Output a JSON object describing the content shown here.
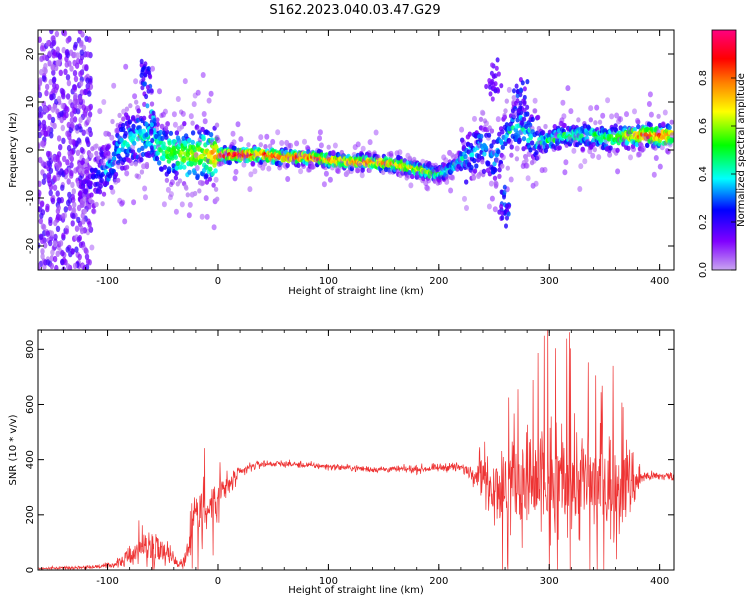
{
  "figure_title": "S162.2023.040.03.47.G29",
  "chart_data": [
    {
      "type": "heatmap",
      "xlabel": "Height of straight line (km)",
      "ylabel": "Frequency (Hz)",
      "xlim": [
        -163,
        413
      ],
      "ylim": [
        -25,
        25
      ],
      "xticks": [
        -100,
        0,
        100,
        200,
        300,
        400
      ],
      "yticks": [
        -20,
        -10,
        0,
        10,
        20
      ],
      "colorbar": {
        "label": "Normalized spectral amplitude",
        "range": [
          0,
          1
        ],
        "ticks": [
          0.0,
          0.2,
          0.4,
          0.6,
          0.8
        ],
        "colormap": [
          "#c9a6f0",
          "#8000ff",
          "#0000ff",
          "#00ffff",
          "#00ff00",
          "#ffff00",
          "#ff8000",
          "#ff0000",
          "#ff0080"
        ]
      },
      "ridge": {
        "x": [
          -120,
          -100,
          -90,
          -80,
          -70,
          -60,
          -50,
          -40,
          -30,
          -20,
          -10,
          0,
          20,
          40,
          60,
          80,
          100,
          120,
          140,
          160,
          180,
          200,
          210,
          220,
          230,
          240,
          250,
          260,
          270,
          280,
          290,
          300,
          310,
          320,
          330,
          340,
          350,
          360,
          370,
          380,
          390,
          400,
          410
        ],
        "y": [
          -8,
          -4,
          0,
          2,
          3,
          3,
          0,
          -0.5,
          -1,
          -1,
          -1,
          -1,
          -1,
          -1,
          -1.5,
          -1.5,
          -2,
          -2.5,
          -2.5,
          -3,
          -4,
          -5,
          -4,
          -2,
          -1,
          1,
          -2,
          3,
          5,
          4,
          2,
          2,
          3,
          3,
          3,
          3,
          2.5,
          2.5,
          3,
          3,
          3,
          3,
          3
        ],
        "amplitude": [
          0.15,
          0.3,
          0.4,
          0.4,
          0.45,
          0.45,
          0.5,
          0.55,
          0.6,
          0.65,
          0.7,
          0.85,
          0.95,
          0.9,
          0.85,
          0.85,
          0.8,
          0.8,
          0.8,
          0.75,
          0.7,
          0.5,
          0.45,
          0.4,
          0.35,
          0.35,
          0.35,
          0.35,
          0.4,
          0.4,
          0.4,
          0.45,
          0.45,
          0.45,
          0.5,
          0.5,
          0.5,
          0.6,
          0.65,
          0.8,
          0.85,
          0.85,
          0.8
        ]
      },
      "features": [
        {
          "x": -65,
          "y": 15,
          "amplitude": 0.3
        },
        {
          "x": -60,
          "y": 5,
          "amplitude": 0.4
        },
        {
          "x": 250,
          "y": 14,
          "amplitude": 0.2
        },
        {
          "x": 260,
          "y": -12,
          "amplitude": 0.3
        },
        {
          "x": 275,
          "y": 10,
          "amplitude": 0.3
        }
      ]
    },
    {
      "type": "line",
      "xlabel": "Height of straight line (km)",
      "ylabel": "SNR (10 * v/v)",
      "xlim": [
        -163,
        413
      ],
      "ylim": [
        0,
        870
      ],
      "xticks": [
        -100,
        0,
        100,
        200,
        300,
        400
      ],
      "yticks": [
        0,
        200,
        400,
        600,
        800
      ],
      "color": "#ee3333",
      "series": [
        {
          "x": [
            -163,
            -140,
            -120,
            -100,
            -90,
            -80,
            -70,
            -60,
            -50,
            -40,
            -35,
            -30,
            -25,
            -20,
            -15,
            -10,
            -5,
            0,
            5,
            10,
            15,
            20,
            30,
            40,
            50,
            60,
            80,
            100,
            120,
            140,
            160,
            180,
            200,
            210,
            220,
            230,
            240,
            250,
            260,
            270,
            280,
            290,
            300,
            310,
            320,
            330,
            340,
            350,
            360,
            370,
            380,
            385,
            390,
            400,
            413
          ],
          "y": [
            5,
            8,
            10,
            15,
            25,
            50,
            75,
            90,
            80,
            40,
            20,
            40,
            110,
            220,
            240,
            220,
            240,
            260,
            290,
            310,
            330,
            350,
            375,
            385,
            385,
            385,
            380,
            375,
            370,
            365,
            365,
            365,
            370,
            375,
            370,
            355,
            340,
            320,
            300,
            310,
            320,
            310,
            300,
            320,
            330,
            320,
            310,
            310,
            310,
            320,
            330,
            340,
            340,
            340,
            340
          ],
          "noise": [
            3,
            4,
            5,
            8,
            15,
            30,
            45,
            60,
            45,
            20,
            15,
            30,
            60,
            90,
            90,
            80,
            70,
            60,
            50,
            40,
            30,
            20,
            15,
            12,
            10,
            10,
            10,
            10,
            10,
            10,
            10,
            12,
            12,
            14,
            15,
            25,
            60,
            110,
            140,
            160,
            170,
            190,
            220,
            200,
            190,
            180,
            170,
            170,
            160,
            130,
            80,
            20,
            15,
            15,
            15
          ]
        }
      ]
    }
  ]
}
